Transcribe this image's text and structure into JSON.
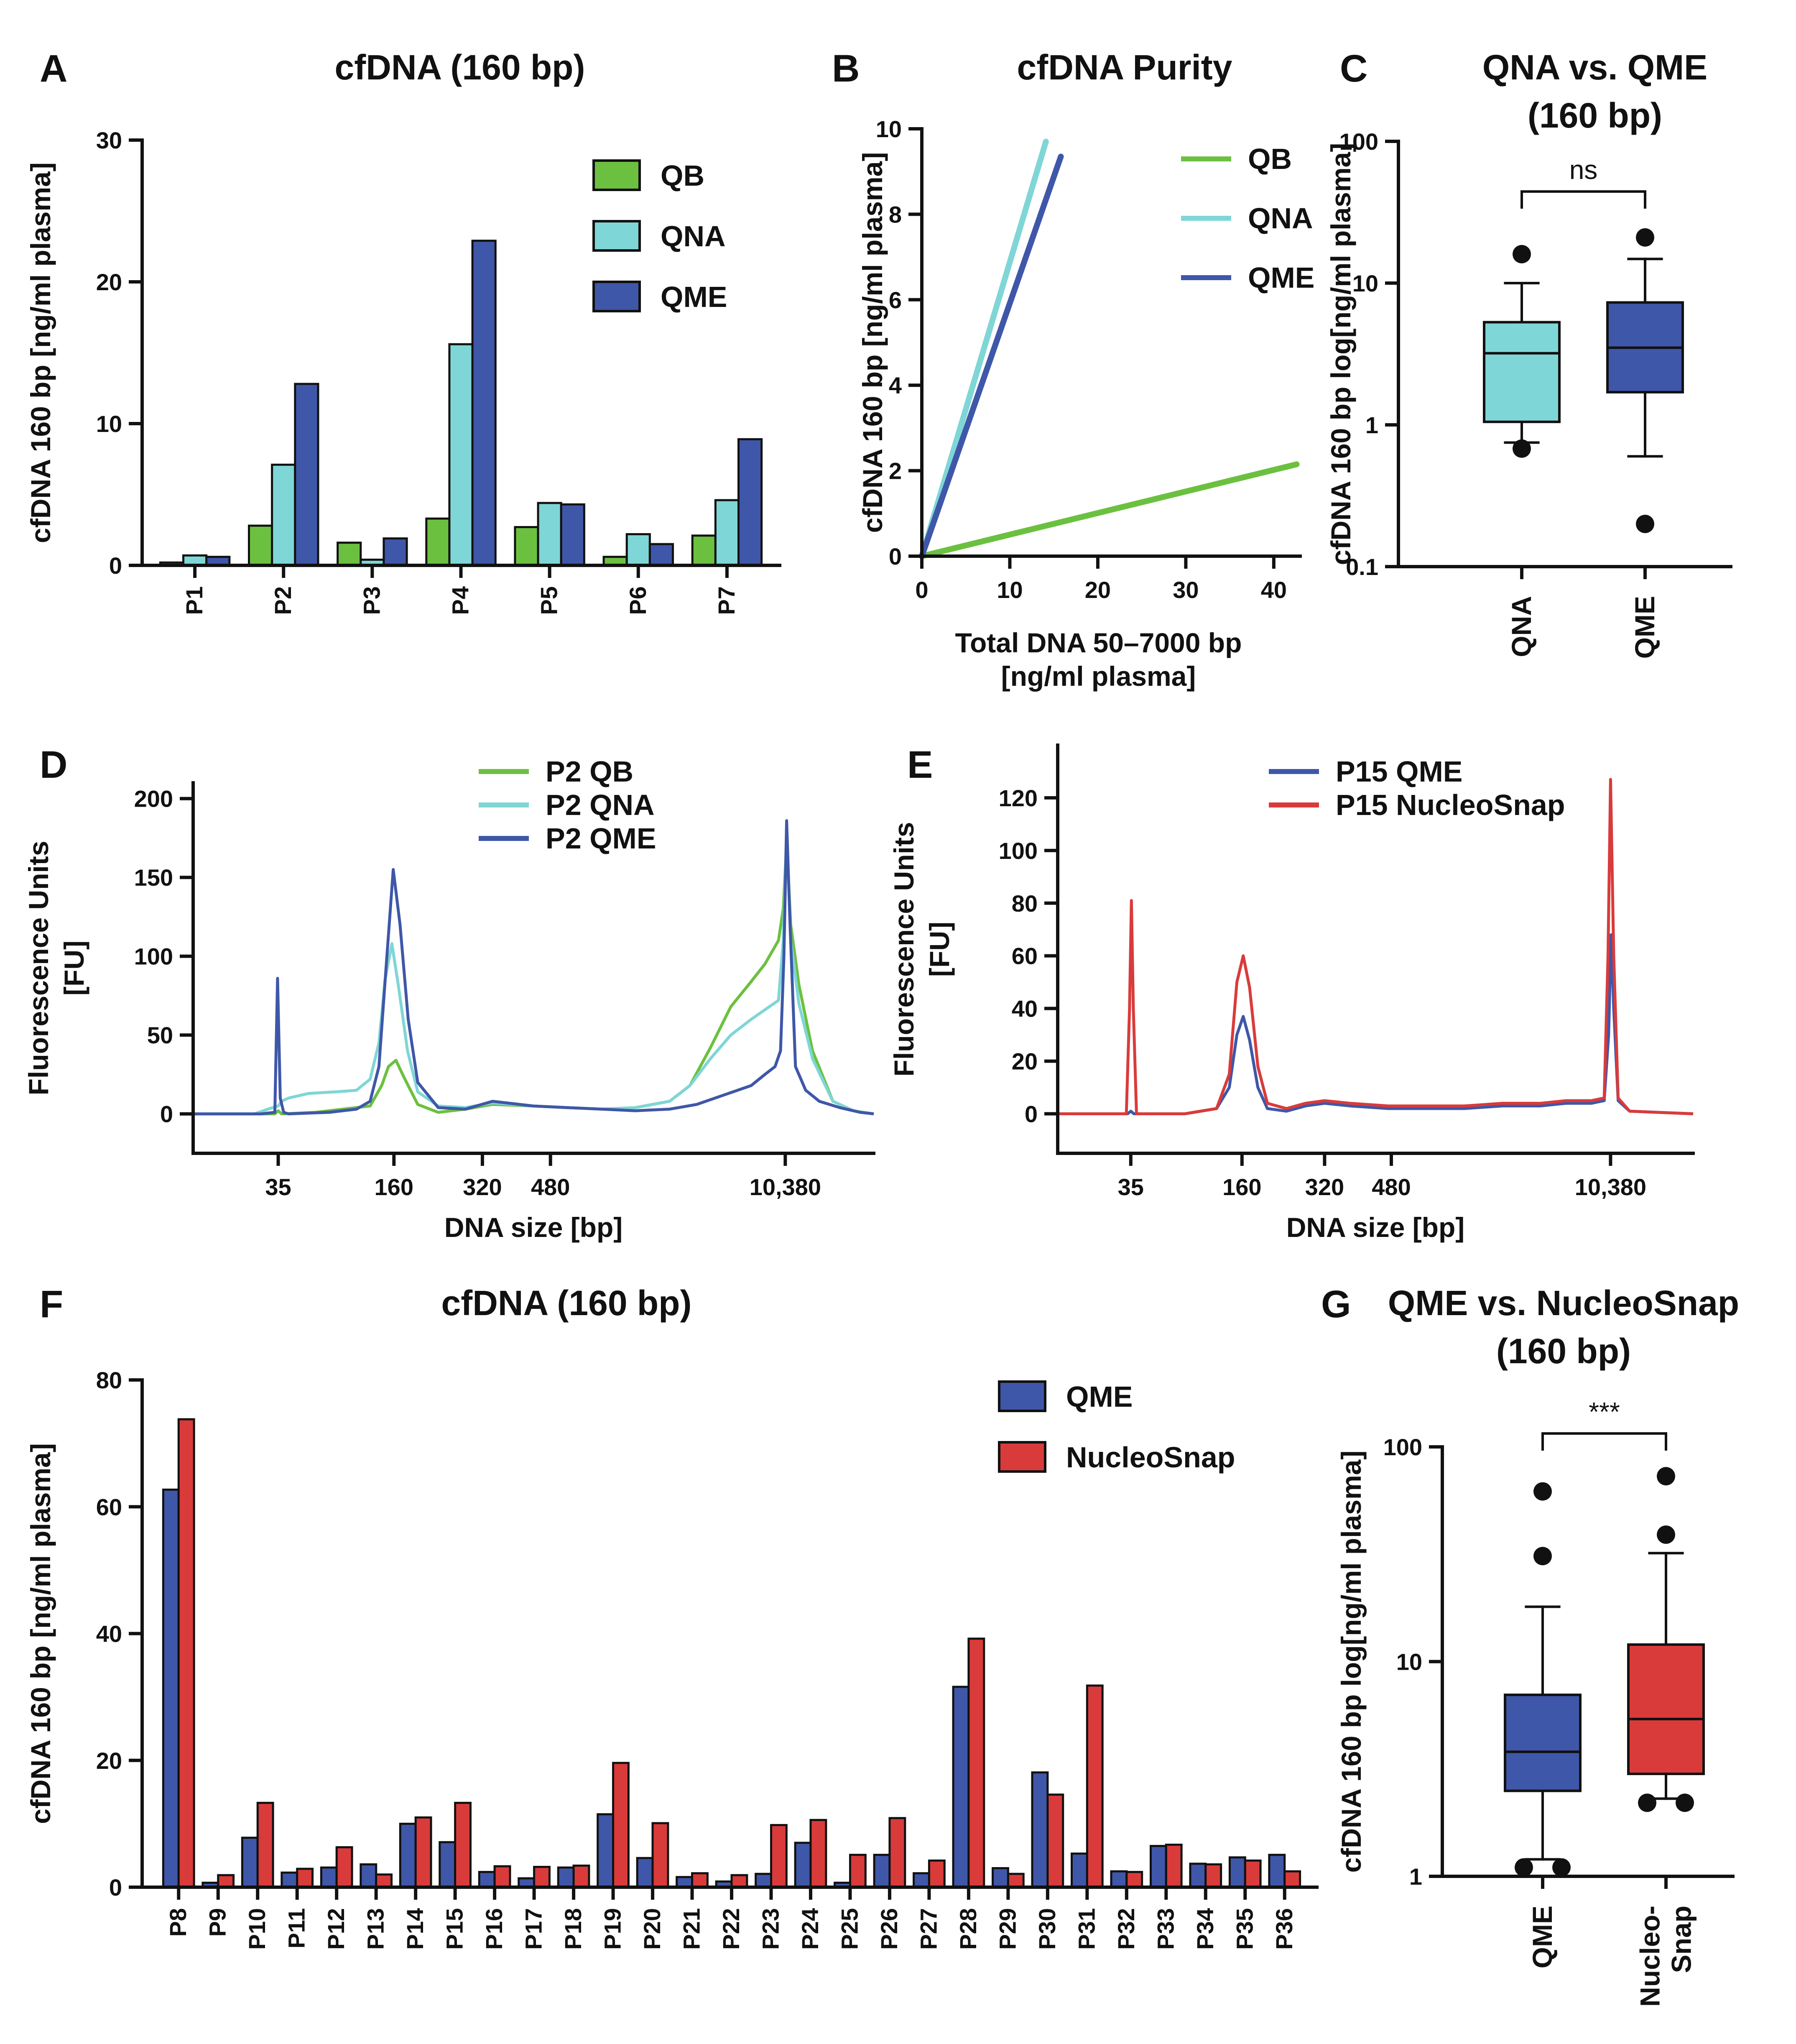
{
  "colors": {
    "QB": "#6cc040",
    "QNA": "#7fd6d6",
    "QME": "#3f57a8",
    "NucleoSnap": "#d93b3b",
    "axis": "#111111"
  },
  "chart_data": [
    {
      "id": "A",
      "letter": "A",
      "type": "bar",
      "title": "cfDNA (160 bp)",
      "ylabel": "cfDNA 160 bp  [ng/ml plasma]",
      "xlabel": "",
      "ylim": [
        0,
        30
      ],
      "yticks": [
        0,
        10,
        20,
        30
      ],
      "categories": [
        "P1",
        "P2",
        "P3",
        "P4",
        "P5",
        "P6",
        "P7"
      ],
      "series": [
        {
          "name": "QB",
          "color": "#6cc040",
          "values": [
            0.2,
            2.8,
            1.6,
            3.3,
            2.7,
            0.6,
            2.1
          ]
        },
        {
          "name": "QNA",
          "color": "#7fd6d6",
          "values": [
            0.7,
            7.1,
            0.4,
            15.6,
            4.4,
            2.2,
            4.6
          ]
        },
        {
          "name": "QME",
          "color": "#3f57a8",
          "values": [
            0.6,
            12.8,
            1.9,
            22.9,
            4.3,
            1.5,
            8.9
          ]
        }
      ],
      "legend": "top-right"
    },
    {
      "id": "B",
      "letter": "B",
      "type": "line",
      "title": "cfDNA Purity",
      "ylabel": "cfDNA 160 bp  [ng/ml plasma]",
      "xlabel": "Total DNA 50–7000 bp",
      "xlabel2": "[ng/ml plasma]",
      "xlim": [
        0,
        43
      ],
      "ylim": [
        0,
        10
      ],
      "xticks": [
        0,
        10,
        20,
        30,
        40
      ],
      "yticks": [
        0,
        2,
        4,
        6,
        8,
        10
      ],
      "series": [
        {
          "name": "QB",
          "color": "#6cc040",
          "x": [
            0,
            42.6
          ],
          "y": [
            0,
            2.15
          ]
        },
        {
          "name": "QNA",
          "color": "#7fd6d6",
          "x": [
            0,
            14.1
          ],
          "y": [
            0,
            9.7
          ]
        },
        {
          "name": "QME",
          "color": "#3f57a8",
          "x": [
            0,
            15.8
          ],
          "y": [
            0,
            9.35
          ]
        }
      ],
      "legend": "top-right"
    },
    {
      "id": "C",
      "letter": "C",
      "type": "box",
      "title": "QNA vs. QME",
      "title2": "(160 bp)",
      "ylabel": "cfDNA 160 bp  log[ng/ml plasma]",
      "yscale": "log",
      "ylim": [
        0.1,
        100
      ],
      "yticks": [
        0.1,
        1,
        10,
        100
      ],
      "ytick_labels": [
        "0.1",
        "1",
        "10",
        "100"
      ],
      "significance": "ns",
      "boxes": [
        {
          "name": "QNA",
          "color": "#7fd6d6",
          "whisker_low": 0.75,
          "q1": 1.05,
          "median": 3.2,
          "q3": 5.3,
          "whisker_high": 10.0,
          "outliers": [
            0.68,
            16.0
          ]
        },
        {
          "name": "QME",
          "color": "#3f57a8",
          "whisker_low": 0.6,
          "q1": 1.7,
          "median": 3.5,
          "q3": 7.3,
          "whisker_high": 14.8,
          "outliers": [
            0.2,
            21.0
          ]
        }
      ]
    },
    {
      "id": "D",
      "letter": "D",
      "type": "line",
      "title": "",
      "ylabel": "Fluorescence Units",
      "ylabel2": "[FU]",
      "xlabel": "DNA size [bp]",
      "xlim": [
        0,
        100
      ],
      "ylim": [
        -25,
        210
      ],
      "yticks": [
        0,
        50,
        100,
        150,
        200
      ],
      "xtick_positions": [
        12.5,
        29.5,
        42.5,
        52.5,
        87.0
      ],
      "xtick_labels": [
        "35",
        "160",
        "320",
        "480",
        "10,380"
      ],
      "series": [
        {
          "name": "P2  QB",
          "color": "#6cc040",
          "x": [
            0,
            12,
            12.5,
            13,
            18,
            26,
            27.7,
            28.7,
            29.8,
            31,
            33,
            36,
            40,
            44,
            50,
            55,
            60,
            65,
            70,
            73,
            76,
            79,
            82,
            84,
            86,
            86.7,
            87.2,
            87.8,
            89,
            91,
            94,
            97,
            100
          ],
          "y": [
            0,
            0,
            2,
            0,
            1,
            5,
            18,
            30,
            34,
            23,
            6,
            1,
            3,
            6,
            5,
            4,
            3,
            4,
            8,
            18,
            42,
            68,
            84,
            95,
            110,
            130,
            172,
            120,
            82,
            40,
            8,
            2,
            0
          ]
        },
        {
          "name": "P2  QNA",
          "color": "#7fd6d6",
          "x": [
            0,
            9,
            11,
            12.5,
            13,
            14,
            17,
            21,
            24,
            26,
            27.3,
            28.2,
            29.2,
            30.2,
            31.5,
            33,
            36,
            40,
            44,
            50,
            55,
            60,
            65,
            70,
            73,
            76,
            79,
            82,
            84,
            86,
            86.7,
            87.2,
            87.8,
            89,
            91,
            94,
            97,
            100
          ],
          "y": [
            0,
            0,
            3,
            5,
            8,
            10,
            13,
            14,
            15,
            22,
            45,
            85,
            108,
            80,
            40,
            14,
            5,
            4,
            7,
            5,
            4,
            3,
            4,
            8,
            18,
            35,
            50,
            60,
            66,
            72,
            110,
            180,
            110,
            70,
            35,
            8,
            2,
            0
          ]
        },
        {
          "name": "P2  QME",
          "color": "#3f57a8",
          "x": [
            0,
            10,
            12,
            12.4,
            12.8,
            13.3,
            14,
            20,
            24,
            26,
            27.3,
            28.3,
            29.4,
            30.4,
            31.6,
            33,
            36,
            40,
            44,
            50,
            55,
            60,
            65,
            70,
            74,
            78,
            82,
            84,
            85.5,
            86.3,
            86.8,
            87.2,
            87.7,
            88.5,
            90,
            92,
            95,
            98,
            100
          ],
          "y": [
            0,
            0,
            1,
            86,
            10,
            1,
            0,
            1,
            3,
            8,
            30,
            90,
            155,
            120,
            60,
            20,
            4,
            3,
            8,
            5,
            4,
            3,
            2,
            3,
            6,
            12,
            18,
            25,
            30,
            40,
            100,
            186,
            120,
            30,
            15,
            8,
            4,
            1,
            0
          ]
        }
      ],
      "legend": "top-center"
    },
    {
      "id": "E",
      "letter": "E",
      "type": "line",
      "title": "",
      "ylabel": "Fluorescence Units",
      "ylabel2": "[FU]",
      "xlabel": "DNA size [bp]",
      "xlim": [
        0,
        100
      ],
      "ylim": [
        -15,
        140
      ],
      "yticks": [
        0,
        20,
        40,
        60,
        80,
        100,
        120
      ],
      "xtick_positions": [
        11.5,
        29.0,
        42.0,
        52.5,
        87.0
      ],
      "xtick_labels": [
        "35",
        "160",
        "320",
        "480",
        "10,380"
      ],
      "series": [
        {
          "name": "P15  QME",
          "color": "#3f57a8",
          "x": [
            0,
            11,
            11.5,
            12,
            20,
            25,
            27,
            28.2,
            29.2,
            30.2,
            31.5,
            33,
            36,
            39,
            42,
            46,
            52,
            58,
            64,
            70,
            76,
            80,
            84,
            86,
            86.7,
            87.1,
            87.5,
            88.2,
            90,
            100
          ],
          "y": [
            0,
            0,
            1,
            0,
            0,
            2,
            10,
            30,
            37,
            28,
            10,
            2,
            1,
            3,
            4,
            3,
            2,
            2,
            2,
            3,
            3,
            4,
            4,
            5,
            30,
            68,
            40,
            5,
            1,
            0
          ]
        },
        {
          "name": "P15  NucleoSnap",
          "color": "#d93b3b",
          "x": [
            0,
            10.8,
            11.3,
            11.6,
            11.9,
            12.4,
            20,
            25,
            27,
            28.2,
            29.2,
            30.2,
            31.5,
            33,
            36,
            39,
            42,
            46,
            52,
            58,
            64,
            70,
            76,
            80,
            84,
            86,
            86.6,
            87.0,
            87.5,
            88.2,
            90,
            100
          ],
          "y": [
            0,
            0,
            40,
            81,
            40,
            0,
            0,
            2,
            15,
            50,
            60,
            48,
            18,
            4,
            2,
            4,
            5,
            4,
            3,
            3,
            3,
            4,
            4,
            5,
            5,
            6,
            60,
            127,
            60,
            6,
            1,
            0
          ]
        }
      ],
      "legend": "top-center"
    },
    {
      "id": "F",
      "letter": "F",
      "type": "bar",
      "title": "cfDNA (160 bp)",
      "ylabel": "cfDNA 160 bp  [ng/ml plasma]",
      "xlabel": "",
      "ylim": [
        0,
        80
      ],
      "yticks": [
        0,
        20,
        40,
        60,
        80
      ],
      "categories": [
        "P8",
        "P9",
        "P10",
        "P11",
        "P12",
        "P13",
        "P14",
        "P15",
        "P16",
        "P17",
        "P18",
        "P19",
        "P20",
        "P21",
        "P22",
        "P23",
        "P24",
        "P25",
        "P26",
        "P27",
        "P28",
        "P29",
        "P30",
        "P31",
        "P32",
        "P33",
        "P34",
        "P35",
        "P36"
      ],
      "series": [
        {
          "name": "QME",
          "color": "#3f57a8",
          "values": [
            62.7,
            0.7,
            7.8,
            2.3,
            3.1,
            3.6,
            10.0,
            7.1,
            2.4,
            1.4,
            3.1,
            11.5,
            4.6,
            1.6,
            0.9,
            2.1,
            7.0,
            0.7,
            5.1,
            2.2,
            31.6,
            3.0,
            18.1,
            5.3,
            2.5,
            6.5,
            3.7,
            4.7,
            5.1
          ]
        },
        {
          "name": "NucleoSnap",
          "color": "#d93b3b",
          "values": [
            73.8,
            1.9,
            13.3,
            2.9,
            6.3,
            2.0,
            11.0,
            13.3,
            3.3,
            3.2,
            3.4,
            19.6,
            10.1,
            2.2,
            1.9,
            9.8,
            10.6,
            5.1,
            10.9,
            4.2,
            39.2,
            2.1,
            14.6,
            31.8,
            2.4,
            6.7,
            3.6,
            4.2,
            2.5
          ]
        }
      ],
      "legend": "top-right"
    },
    {
      "id": "G",
      "letter": "G",
      "type": "box",
      "title": "QME vs. NucleoSnap",
      "title2": "(160 bp)",
      "ylabel": "cfDNA 160 bp  log[ng/ml plasma]",
      "yscale": "log",
      "ylim": [
        1,
        100
      ],
      "yticks": [
        1,
        10,
        100
      ],
      "ytick_labels": [
        "1",
        "10",
        "100"
      ],
      "significance": "***",
      "boxes": [
        {
          "name": "QME",
          "label_lines": [
            "QME"
          ],
          "color": "#3f57a8",
          "whisker_low": 1.2,
          "q1": 2.5,
          "median": 3.8,
          "q3": 7.0,
          "whisker_high": 18.0,
          "outliers": [
            1.1,
            1.1,
            31.0,
            62.0
          ]
        },
        {
          "name": "Nucleo-Snap",
          "label_lines": [
            "Nucleo-",
            "Snap"
          ],
          "color": "#d93b3b",
          "whisker_low": 2.3,
          "q1": 3.0,
          "median": 5.4,
          "q3": 12.0,
          "whisker_high": 32.0,
          "outliers": [
            2.2,
            2.2,
            39.0,
            73.0
          ]
        }
      ]
    }
  ]
}
